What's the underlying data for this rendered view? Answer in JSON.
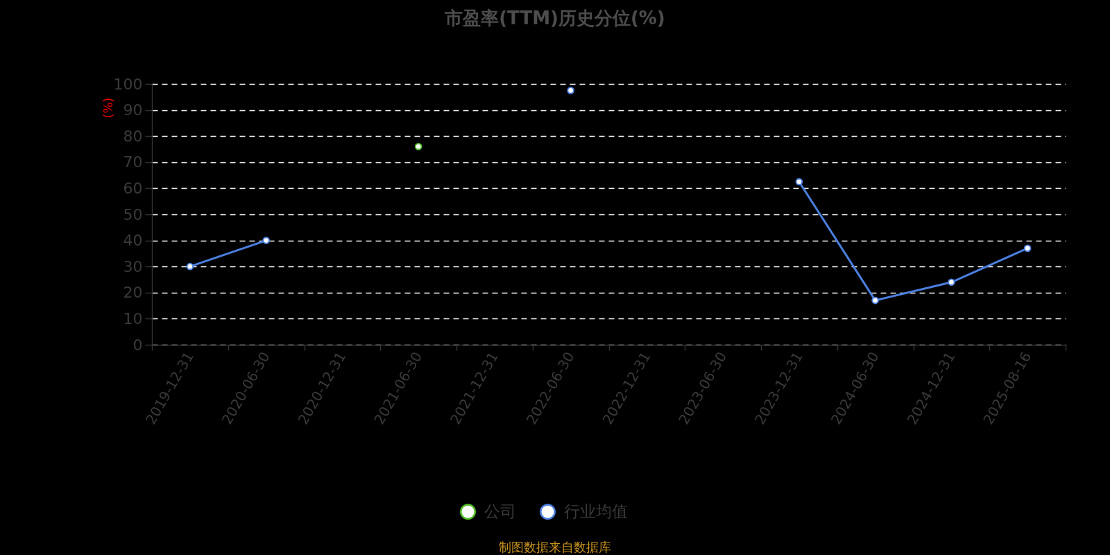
{
  "chart_data": {
    "type": "line",
    "title": "市盈率(TTM)历史分位(%)",
    "ylabel": "(%)",
    "categories": [
      "2019-12-31",
      "2020-06-30",
      "2020-12-31",
      "2021-06-30",
      "2021-12-31",
      "2022-06-30",
      "2022-12-31",
      "2023-06-30",
      "2023-12-31",
      "2024-06-30",
      "2024-12-31",
      "2025-08-16"
    ],
    "series": [
      {
        "name": "公司",
        "color": "#55c12c",
        "values": [
          null,
          null,
          null,
          76,
          null,
          null,
          null,
          null,
          null,
          null,
          null,
          null
        ]
      },
      {
        "name": "行业均值",
        "color": "#4b7fdf",
        "values": [
          30,
          40,
          null,
          null,
          null,
          97.5,
          null,
          null,
          62.5,
          17,
          24,
          37
        ]
      }
    ],
    "ylim": [
      0,
      100
    ],
    "yticks": [
      0,
      10,
      20,
      30,
      40,
      50,
      60,
      70,
      80,
      90,
      100
    ],
    "grid": "y",
    "legend": "bottom",
    "marker": "circle",
    "line_style": "solid",
    "annotations": [
      "制图数据来自数据库"
    ]
  }
}
